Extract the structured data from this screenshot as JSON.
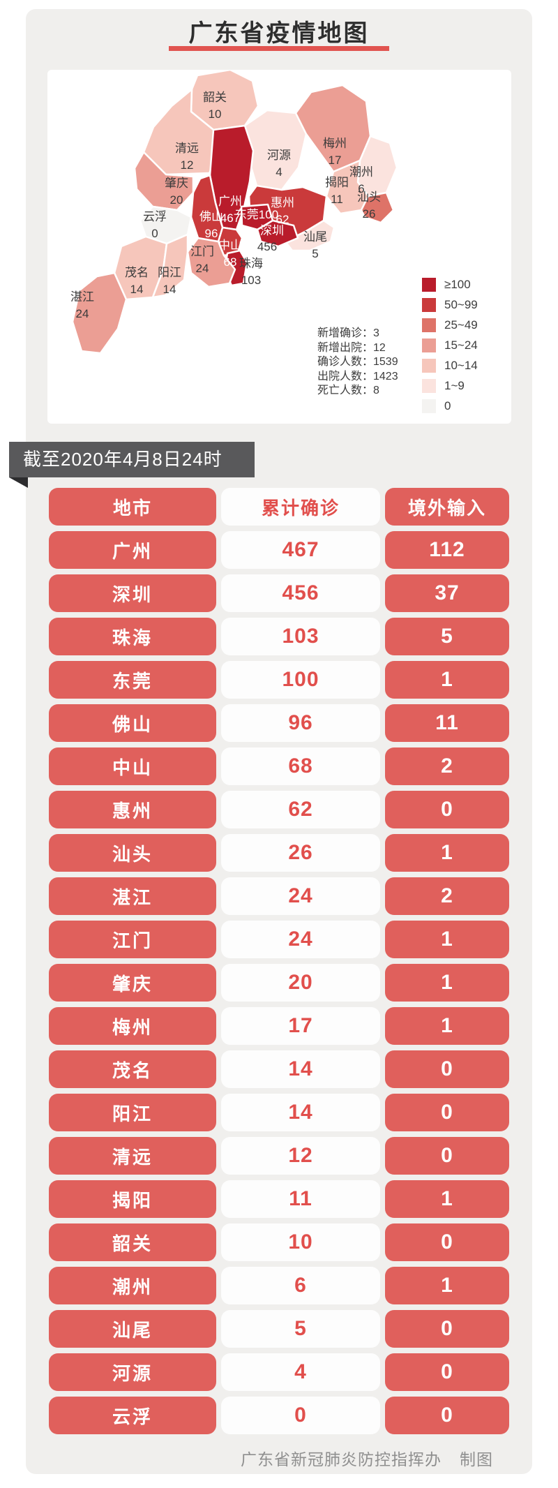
{
  "title": "广东省疫情地图",
  "as_of": "截至2020年4月8日24时",
  "colors": {
    "accent_red": "#e15450",
    "pill_red": "#e0605c",
    "pill_red_text": "#e14f4c",
    "banner_bg": "#59595b",
    "banner_fold": "#2c2c2e",
    "card_bg": "#f0efed",
    "bucket_gte100": "#b91c2b",
    "bucket_50_99": "#ca3a3b",
    "bucket_25_49": "#de7368",
    "bucket_15_24": "#eb9e94",
    "bucket_10_14": "#f6c6bb",
    "bucket_1_9": "#fbe3de",
    "bucket_0": "#f4f3f1"
  },
  "map": {
    "stats": [
      {
        "label": "新增确诊",
        "value": "3"
      },
      {
        "label": "新增出院",
        "value": "12"
      },
      {
        "label": "确诊人数",
        "value": "1539"
      },
      {
        "label": "出院人数",
        "value": "1423"
      },
      {
        "label": "死亡人数",
        "value": "8"
      }
    ],
    "legend": [
      {
        "label": "≥100",
        "bucket": "bucket_gte100"
      },
      {
        "label": "50~99",
        "bucket": "bucket_50_99"
      },
      {
        "label": "25~49",
        "bucket": "bucket_25_49"
      },
      {
        "label": "15~24",
        "bucket": "bucket_15_24"
      },
      {
        "label": "10~14",
        "bucket": "bucket_10_14"
      },
      {
        "label": "1~9",
        "bucket": "bucket_1_9"
      },
      {
        "label": "0",
        "bucket": "bucket_0"
      }
    ],
    "regions": [
      {
        "name": "韶关",
        "value": "10",
        "bucket": "bucket_10_14"
      },
      {
        "name": "清远",
        "value": "12",
        "bucket": "bucket_10_14"
      },
      {
        "name": "河源",
        "value": "4",
        "bucket": "bucket_1_9"
      },
      {
        "name": "梅州",
        "value": "17",
        "bucket": "bucket_15_24"
      },
      {
        "name": "潮州",
        "value": "6",
        "bucket": "bucket_1_9"
      },
      {
        "name": "揭阳",
        "value": "11",
        "bucket": "bucket_10_14"
      },
      {
        "name": "汕头",
        "value": "26",
        "bucket": "bucket_25_49"
      },
      {
        "name": "汕尾",
        "value": "5",
        "bucket": "bucket_1_9"
      },
      {
        "name": "惠州",
        "value": "62",
        "bucket": "bucket_50_99"
      },
      {
        "name": "广州",
        "value": "467",
        "bucket": "bucket_gte100"
      },
      {
        "name": "东莞",
        "value": "100",
        "bucket": "bucket_gte100"
      },
      {
        "name": "深圳",
        "value": "456",
        "bucket": "bucket_gte100"
      },
      {
        "name": "中山",
        "value": "68",
        "bucket": "bucket_50_99"
      },
      {
        "name": "珠海",
        "value": "103",
        "bucket": "bucket_gte100"
      },
      {
        "name": "江门",
        "value": "24",
        "bucket": "bucket_15_24"
      },
      {
        "name": "佛山",
        "value": "96",
        "bucket": "bucket_50_99"
      },
      {
        "name": "肇庆",
        "value": "20",
        "bucket": "bucket_15_24"
      },
      {
        "name": "云浮",
        "value": "0",
        "bucket": "bucket_0"
      },
      {
        "name": "茂名",
        "value": "14",
        "bucket": "bucket_10_14"
      },
      {
        "name": "阳江",
        "value": "14",
        "bucket": "bucket_10_14"
      },
      {
        "name": "湛江",
        "value": "24",
        "bucket": "bucket_15_24"
      }
    ]
  },
  "table": {
    "headers": [
      "地市",
      "累计确诊",
      "境外输入"
    ],
    "rows": [
      {
        "city": "广州",
        "confirmed": "467",
        "imported": "112"
      },
      {
        "city": "深圳",
        "confirmed": "456",
        "imported": "37"
      },
      {
        "city": "珠海",
        "confirmed": "103",
        "imported": "5"
      },
      {
        "city": "东莞",
        "confirmed": "100",
        "imported": "1"
      },
      {
        "city": "佛山",
        "confirmed": "96",
        "imported": "11"
      },
      {
        "city": "中山",
        "confirmed": "68",
        "imported": "2"
      },
      {
        "city": "惠州",
        "confirmed": "62",
        "imported": "0"
      },
      {
        "city": "汕头",
        "confirmed": "26",
        "imported": "1"
      },
      {
        "city": "湛江",
        "confirmed": "24",
        "imported": "2"
      },
      {
        "city": "江门",
        "confirmed": "24",
        "imported": "1"
      },
      {
        "city": "肇庆",
        "confirmed": "20",
        "imported": "1"
      },
      {
        "city": "梅州",
        "confirmed": "17",
        "imported": "1"
      },
      {
        "city": "茂名",
        "confirmed": "14",
        "imported": "0"
      },
      {
        "city": "阳江",
        "confirmed": "14",
        "imported": "0"
      },
      {
        "city": "清远",
        "confirmed": "12",
        "imported": "0"
      },
      {
        "city": "揭阳",
        "confirmed": "11",
        "imported": "1"
      },
      {
        "city": "韶关",
        "confirmed": "10",
        "imported": "0"
      },
      {
        "city": "潮州",
        "confirmed": "6",
        "imported": "1"
      },
      {
        "city": "汕尾",
        "confirmed": "5",
        "imported": "0"
      },
      {
        "city": "河源",
        "confirmed": "4",
        "imported": "0"
      },
      {
        "city": "云浮",
        "confirmed": "0",
        "imported": "0"
      }
    ]
  },
  "footer": {
    "source": "广东省新冠肺炎防控指挥办",
    "suffix": "制图"
  },
  "chart_data": [
    {
      "type": "heatmap",
      "subtype": "choropleth-map",
      "title": "广东省疫情地图",
      "value_meaning": "累计确诊病例数",
      "legend_buckets": [
        "≥100",
        "50~99",
        "25~49",
        "15~24",
        "10~14",
        "1~9",
        "0"
      ],
      "legend_position": "bottom-right",
      "regions": {
        "广州": 467,
        "深圳": 456,
        "珠海": 103,
        "东莞": 100,
        "佛山": 96,
        "中山": 68,
        "惠州": 62,
        "汕头": 26,
        "湛江": 24,
        "江门": 24,
        "肇庆": 20,
        "梅州": 17,
        "茂名": 14,
        "阳江": 14,
        "清远": 12,
        "揭阳": 11,
        "韶关": 10,
        "潮州": 6,
        "汕尾": 5,
        "河源": 4,
        "云浮": 0
      },
      "annotations": {
        "新增确诊": 3,
        "新增出院": 12,
        "确诊人数": 1539,
        "出院人数": 1423,
        "死亡人数": 8
      }
    },
    {
      "type": "table",
      "columns": [
        "地市",
        "累计确诊",
        "境外输入"
      ],
      "rows": [
        [
          "广州",
          467,
          112
        ],
        [
          "深圳",
          456,
          37
        ],
        [
          "珠海",
          103,
          5
        ],
        [
          "东莞",
          100,
          1
        ],
        [
          "佛山",
          96,
          11
        ],
        [
          "中山",
          68,
          2
        ],
        [
          "惠州",
          62,
          0
        ],
        [
          "汕头",
          26,
          1
        ],
        [
          "湛江",
          24,
          2
        ],
        [
          "江门",
          24,
          1
        ],
        [
          "肇庆",
          20,
          1
        ],
        [
          "梅州",
          17,
          1
        ],
        [
          "茂名",
          14,
          0
        ],
        [
          "阳江",
          14,
          0
        ],
        [
          "清远",
          12,
          0
        ],
        [
          "揭阳",
          11,
          1
        ],
        [
          "韶关",
          10,
          0
        ],
        [
          "潮州",
          6,
          1
        ],
        [
          "汕尾",
          5,
          0
        ],
        [
          "河源",
          4,
          0
        ],
        [
          "云浮",
          0,
          0
        ]
      ]
    }
  ]
}
